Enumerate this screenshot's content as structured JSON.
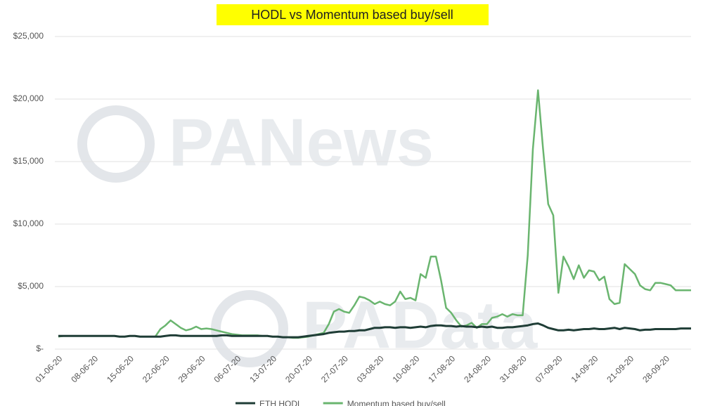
{
  "chart_data": {
    "type": "line",
    "title": "HODL vs Momentum based buy/sell",
    "categories": [
      "01-06-20",
      null,
      null,
      null,
      null,
      null,
      null,
      "08-06-20",
      null,
      null,
      null,
      null,
      null,
      null,
      "15-06-20",
      null,
      null,
      null,
      null,
      null,
      null,
      "22-06-20",
      null,
      null,
      null,
      null,
      null,
      null,
      "29-06-20",
      null,
      null,
      null,
      null,
      null,
      null,
      "06-07-20",
      null,
      null,
      null,
      null,
      null,
      null,
      "13-07-20",
      null,
      null,
      null,
      null,
      null,
      null,
      "20-07-20",
      null,
      null,
      null,
      null,
      null,
      null,
      "27-07-20",
      null,
      null,
      null,
      null,
      null,
      null,
      "03-08-20",
      null,
      null,
      null,
      null,
      null,
      null,
      "10-08-20",
      null,
      null,
      null,
      null,
      null,
      null,
      "17-08-20",
      null,
      null,
      null,
      null,
      null,
      null,
      "24-08-20",
      null,
      null,
      null,
      null,
      null,
      null,
      "31-08-20",
      null,
      null,
      null,
      null,
      null,
      null,
      "07-09-20",
      null,
      null,
      null,
      null,
      null,
      null,
      "14-09-20",
      null,
      null,
      null,
      null,
      null,
      null,
      "21-09-20",
      null,
      null,
      null,
      null,
      null,
      null,
      "28-09-20",
      null,
      null,
      null,
      null,
      null
    ],
    "series": [
      {
        "name": "ETH HODL",
        "color": "#1f3d36",
        "values": [
          1050,
          1050,
          1050,
          1050,
          1050,
          1050,
          1050,
          1050,
          1050,
          1050,
          1050,
          1050,
          1000,
          1000,
          1050,
          1050,
          1000,
          1000,
          1000,
          1000,
          1000,
          1050,
          1100,
          1100,
          1050,
          1050,
          1050,
          1050,
          1050,
          1050,
          1050,
          1050,
          1100,
          1100,
          1050,
          1050,
          1050,
          1050,
          1050,
          1050,
          1050,
          1050,
          1000,
          1000,
          950,
          950,
          950,
          950,
          1000,
          1050,
          1100,
          1150,
          1200,
          1300,
          1350,
          1400,
          1400,
          1450,
          1450,
          1500,
          1500,
          1600,
          1700,
          1700,
          1750,
          1750,
          1700,
          1750,
          1750,
          1700,
          1750,
          1800,
          1750,
          1850,
          1900,
          1900,
          1850,
          1850,
          1800,
          1850,
          1800,
          1800,
          1750,
          1800,
          1750,
          1800,
          1700,
          1700,
          1750,
          1750,
          1800,
          1850,
          1900,
          2000,
          2050,
          1900,
          1700,
          1600,
          1500,
          1500,
          1550,
          1500,
          1550,
          1600,
          1600,
          1650,
          1600,
          1600,
          1650,
          1700,
          1600,
          1700,
          1650,
          1600,
          1500,
          1550,
          1550,
          1600,
          1600,
          1600,
          1600,
          1600,
          1650,
          1650,
          1650
        ]
      },
      {
        "name": "Momentum based buy/sell",
        "color": "#6ab56f",
        "values": [
          1000,
          1050,
          1050,
          1050,
          1050,
          1050,
          1050,
          1050,
          1050,
          1050,
          1050,
          1050,
          1000,
          1000,
          1050,
          1050,
          1000,
          1000,
          1000,
          1000,
          1600,
          1900,
          2300,
          2000,
          1700,
          1500,
          1600,
          1800,
          1600,
          1650,
          1600,
          1500,
          1400,
          1300,
          1200,
          1150,
          1100,
          1100,
          1100,
          1100,
          1050,
          1050,
          1000,
          1000,
          950,
          950,
          900,
          900,
          950,
          1000,
          1100,
          1200,
          1300,
          2000,
          3000,
          3200,
          3000,
          2900,
          3500,
          4200,
          4100,
          3900,
          3600,
          3800,
          3600,
          3500,
          3800,
          4600,
          4000,
          4100,
          3900,
          6000,
          5700,
          7400,
          7400,
          5500,
          3300,
          2900,
          2300,
          1800,
          1900,
          2100,
          1700,
          2000,
          2000,
          2500,
          2600,
          2800,
          2600,
          2800,
          2700,
          2700,
          7500,
          16000,
          20700,
          16000,
          11600,
          10700,
          4500,
          7400,
          6600,
          5600,
          6700,
          5700,
          6300,
          6200,
          5500,
          5800,
          4000,
          3600,
          3700,
          6800,
          6400,
          6000,
          5100,
          4800,
          4700,
          5300,
          5300,
          5200,
          5100,
          4700,
          4700,
          4700,
          4700
        ]
      }
    ],
    "ylim": [
      0,
      25000
    ],
    "yticks": [
      {
        "value": 0,
        "label": "$-"
      },
      {
        "value": 5000,
        "label": "$5,000"
      },
      {
        "value": 10000,
        "label": "$10,000"
      },
      {
        "value": 15000,
        "label": "$15,000"
      },
      {
        "value": 20000,
        "label": "$20,000"
      },
      {
        "value": 25000,
        "label": "$25,000"
      }
    ],
    "grid": true,
    "legend": "bottom",
    "watermarks": [
      "PANews",
      "PAData"
    ]
  }
}
